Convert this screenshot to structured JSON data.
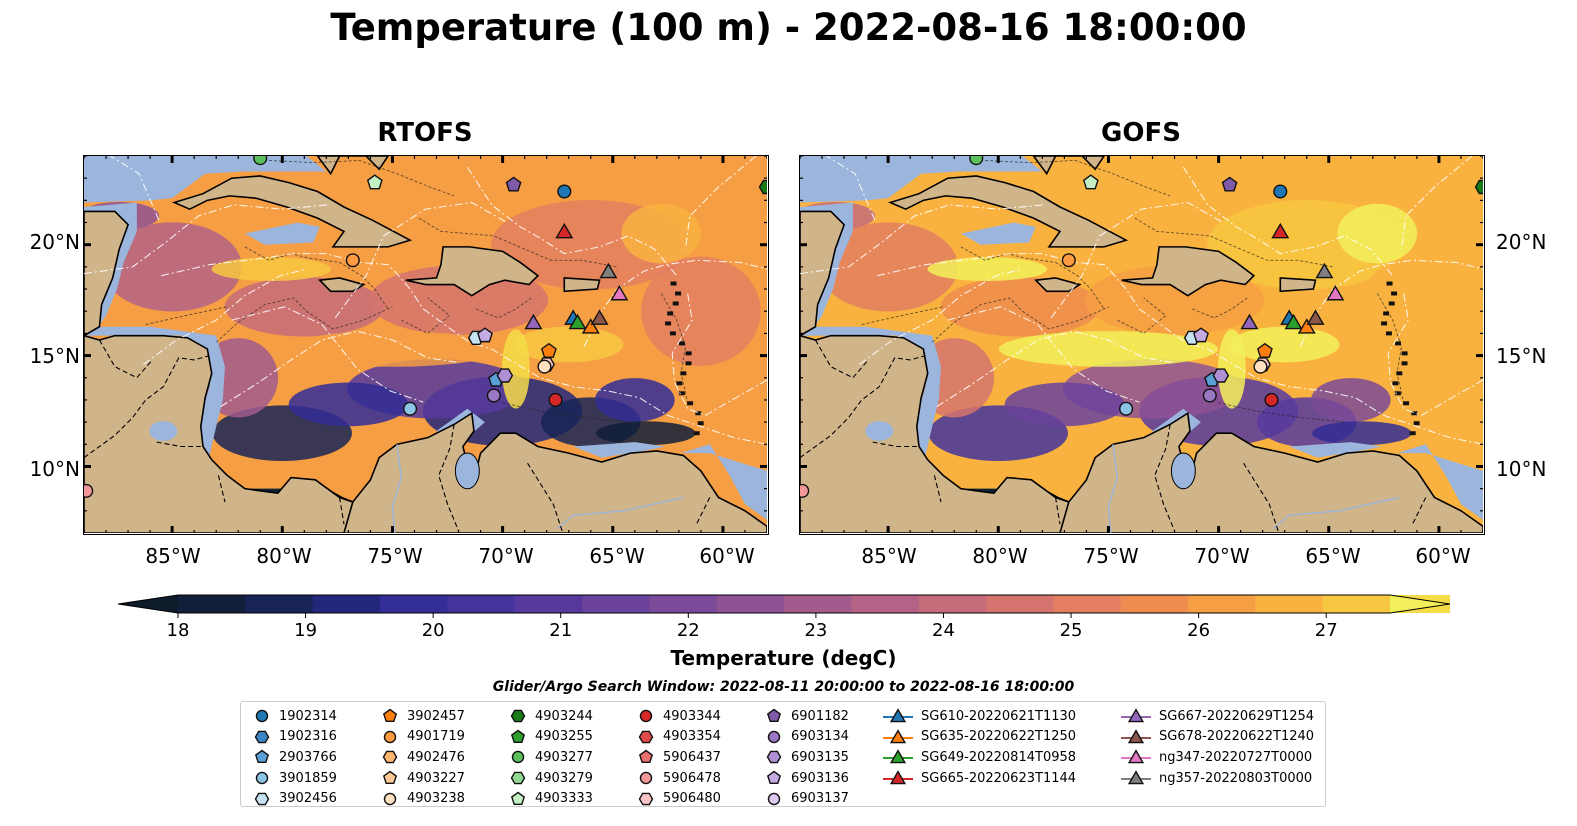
{
  "title": "Temperature (100 m) - 2022-08-16 18:00:00",
  "maps": [
    {
      "title": "RTOFS",
      "color_mode": "warm"
    },
    {
      "title": "GOFS",
      "color_mode": "hot"
    }
  ],
  "x_ticks": [
    "85°W",
    "80°W",
    "75°W",
    "70°W",
    "65°W",
    "60°W"
  ],
  "y_ticks": [
    "20°N",
    "15°N",
    "10°N"
  ],
  "extent": {
    "lon": [
      -89,
      -58
    ],
    "lat": [
      7,
      24
    ]
  },
  "colorbar": {
    "ticks": [
      "18",
      "19",
      "20",
      "21",
      "22",
      "23",
      "24",
      "25",
      "26",
      "27"
    ],
    "label": "Temperature (degC)",
    "colors": [
      "#0d1b2a",
      "#111f3a",
      "#182456",
      "#22277a",
      "#332d96",
      "#43349c",
      "#57399d",
      "#6a429b",
      "#7b4a98",
      "#8e5294",
      "#a15b8d",
      "#b46386",
      "#c56c7b",
      "#d5746f",
      "#e37f60",
      "#ef8c4f",
      "#f69e43",
      "#f9b23f",
      "#f8c741",
      "#f5dc47",
      "#f2f05a"
    ]
  },
  "legend": {
    "title": "Glider/Argo Search Window: 2022-08-11 20:00:00 to 2022-08-16 18:00:00",
    "columns": [
      [
        {
          "label": "1902314",
          "marker": "circle",
          "color": "#1f77b4"
        },
        {
          "label": "1902316",
          "marker": "hexagon",
          "color": "#3a85c4"
        },
        {
          "label": "2903766",
          "marker": "pentagon",
          "color": "#5aa0d6"
        },
        {
          "label": "3901859",
          "marker": "circle",
          "color": "#8cc4e6"
        },
        {
          "label": "3902456",
          "marker": "hexagon",
          "color": "#c6e2f3"
        }
      ],
      [
        {
          "label": "3902457",
          "marker": "pentagon",
          "color": "#ff7f0e"
        },
        {
          "label": "4901719",
          "marker": "circle",
          "color": "#ff9a40"
        },
        {
          "label": "4902476",
          "marker": "hexagon",
          "color": "#ffb470"
        },
        {
          "label": "4903227",
          "marker": "pentagon",
          "color": "#ffc996"
        },
        {
          "label": "4903238",
          "marker": "circle",
          "color": "#ffe0c0"
        }
      ],
      [
        {
          "label": "4903244",
          "marker": "hexagon",
          "color": "#1a7a1a"
        },
        {
          "label": "4903255",
          "marker": "pentagon",
          "color": "#2ca02c"
        },
        {
          "label": "4903277",
          "marker": "circle",
          "color": "#5cc05c"
        },
        {
          "label": "4903279",
          "marker": "hexagon",
          "color": "#90d890"
        },
        {
          "label": "4903333",
          "marker": "pentagon",
          "color": "#c4f0c4"
        }
      ],
      [
        {
          "label": "4903344",
          "marker": "circle",
          "color": "#d62728"
        },
        {
          "label": "4903354",
          "marker": "hexagon",
          "color": "#e04a4a"
        },
        {
          "label": "5906437",
          "marker": "pentagon",
          "color": "#ea7070"
        },
        {
          "label": "5906478",
          "marker": "circle",
          "color": "#f29898"
        },
        {
          "label": "5906480",
          "marker": "hexagon",
          "color": "#f8c4c4"
        }
      ],
      [
        {
          "label": "6901182",
          "marker": "pentagon",
          "color": "#7f5aa8"
        },
        {
          "label": "6903134",
          "marker": "circle",
          "color": "#9b78c4"
        },
        {
          "label": "6903135",
          "marker": "hexagon",
          "color": "#b090d4"
        },
        {
          "label": "6903136",
          "marker": "pentagon",
          "color": "#c6aae2"
        },
        {
          "label": "6903137",
          "marker": "circle",
          "color": "#dcc8f0"
        }
      ],
      [
        {
          "label": "SG610-20220621T1130",
          "marker": "triangle-line",
          "color": "#1f77b4"
        },
        {
          "label": "SG635-20220622T1250",
          "marker": "triangle-line",
          "color": "#ff7f0e"
        },
        {
          "label": "SG649-20220814T0958",
          "marker": "triangle-line",
          "color": "#2ca02c"
        },
        {
          "label": "SG665-20220623T1144",
          "marker": "triangle-line",
          "color": "#d62728"
        }
      ],
      [
        {
          "label": "SG667-20220629T1254",
          "marker": "triangle-line",
          "color": "#9467bd"
        },
        {
          "label": "SG678-20220622T1240",
          "marker": "triangle-line",
          "color": "#8c564b"
        },
        {
          "label": "ng347-20220727T0000",
          "marker": "triangle-line",
          "color": "#e377c2"
        },
        {
          "label": "ng357-20220803T0000",
          "marker": "triangle-line",
          "color": "#7f7f7f"
        }
      ]
    ]
  },
  "markers": [
    {
      "lon": -67.2,
      "lat": 22.4,
      "marker": "circle",
      "color": "#1f77b4"
    },
    {
      "lon": -76.8,
      "lat": 19.3,
      "marker": "circle",
      "color": "#ff9a40"
    },
    {
      "lon": -74.2,
      "lat": 12.6,
      "marker": "circle",
      "color": "#8cc4e6"
    },
    {
      "lon": -81.0,
      "lat": 23.9,
      "marker": "circle",
      "color": "#5cc05c"
    },
    {
      "lon": -58.0,
      "lat": 22.6,
      "marker": "hexagon",
      "color": "#1a7a1a"
    },
    {
      "lon": -75.8,
      "lat": 22.8,
      "marker": "pentagon",
      "color": "#c4f0c4"
    },
    {
      "lon": -69.5,
      "lat": 22.7,
      "marker": "pentagon",
      "color": "#7f5aa8"
    },
    {
      "lon": -71.2,
      "lat": 15.8,
      "marker": "hexagon",
      "color": "#c6e2f3"
    },
    {
      "lon": -70.8,
      "lat": 15.9,
      "marker": "pentagon",
      "color": "#c6aae2"
    },
    {
      "lon": -70.3,
      "lat": 13.9,
      "marker": "pentagon",
      "color": "#5aa0d6"
    },
    {
      "lon": -69.9,
      "lat": 14.1,
      "marker": "hexagon",
      "color": "#b090d4"
    },
    {
      "lon": -70.4,
      "lat": 13.2,
      "marker": "circle",
      "color": "#9b78c4"
    },
    {
      "lon": -67.9,
      "lat": 15.2,
      "marker": "pentagon",
      "color": "#ff7f0e"
    },
    {
      "lon": -68.0,
      "lat": 14.6,
      "marker": "hexagon",
      "color": "#f8c4c4"
    },
    {
      "lon": -68.1,
      "lat": 14.5,
      "marker": "circle",
      "color": "#ffe0c0"
    },
    {
      "lon": -67.6,
      "lat": 13.0,
      "marker": "circle",
      "color": "#d62728"
    },
    {
      "lon": -88.9,
      "lat": 8.9,
      "marker": "circle",
      "color": "#f29898"
    },
    {
      "lon": -67.2,
      "lat": 20.6,
      "marker": "triangle",
      "color": "#d62728"
    },
    {
      "lon": -68.6,
      "lat": 16.5,
      "marker": "triangle",
      "color": "#9467bd"
    },
    {
      "lon": -66.8,
      "lat": 16.7,
      "marker": "triangle",
      "color": "#1f77b4"
    },
    {
      "lon": -66.6,
      "lat": 16.5,
      "marker": "triangle",
      "color": "#2ca02c"
    },
    {
      "lon": -66.0,
      "lat": 16.3,
      "marker": "triangle",
      "color": "#ff7f0e"
    },
    {
      "lon": -65.6,
      "lat": 16.7,
      "marker": "triangle",
      "color": "#8c564b"
    },
    {
      "lon": -65.2,
      "lat": 18.8,
      "marker": "triangle",
      "color": "#7f7f7f"
    },
    {
      "lon": -64.7,
      "lat": 17.8,
      "marker": "triangle",
      "color": "#e377c2"
    }
  ]
}
